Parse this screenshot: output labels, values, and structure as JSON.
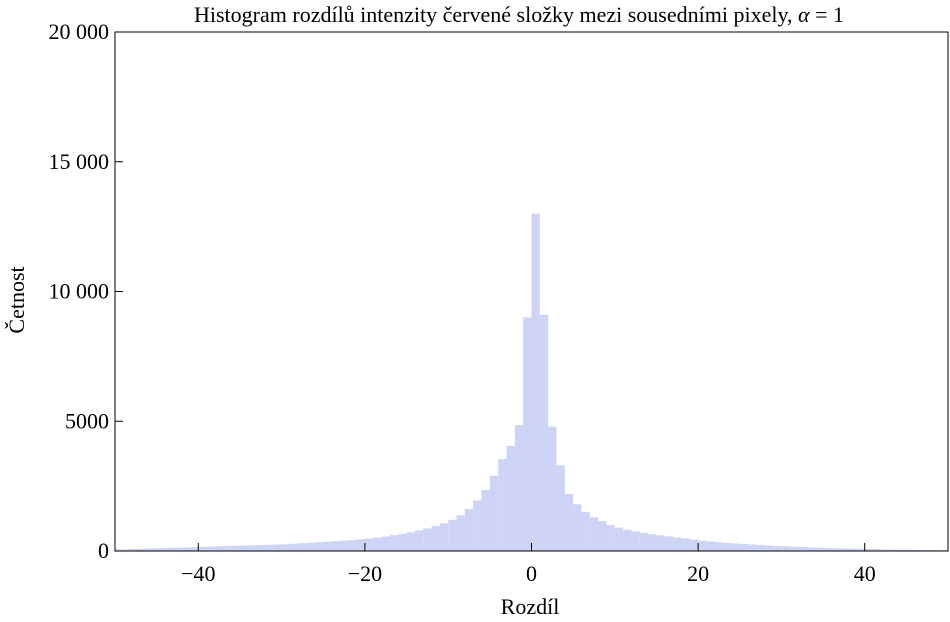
{
  "chart_data": {
    "type": "bar",
    "title_prefix": "Histogram rozdílů intenzity červené složky mezi sousedními pixely, ",
    "title_symbol": "α",
    "title_suffix": " = 1",
    "xlabel": "Rozdíl",
    "ylabel": "Četnost",
    "xlim": [
      -50,
      50
    ],
    "ylim": [
      0,
      20000
    ],
    "x_ticks": [
      -40,
      -20,
      0,
      20,
      40
    ],
    "x_tick_labels": [
      "−40",
      "−20",
      "0",
      "20",
      "40"
    ],
    "y_ticks": [
      0,
      5000,
      10000,
      15000,
      20000
    ],
    "y_tick_labels": [
      "0",
      "5000",
      "10 000",
      "15 000",
      "20 000"
    ],
    "bar_color": "#cdd4f6",
    "bin_width": 1,
    "bins_start": [
      -50,
      -49,
      -48,
      -47,
      -46,
      -45,
      -44,
      -43,
      -42,
      -41,
      -40,
      -39,
      -38,
      -37,
      -36,
      -35,
      -34,
      -33,
      -32,
      -31,
      -30,
      -29,
      -28,
      -27,
      -26,
      -25,
      -24,
      -23,
      -22,
      -21,
      -20,
      -19,
      -18,
      -17,
      -16,
      -15,
      -14,
      -13,
      -12,
      -11,
      -10,
      -9,
      -8,
      -7,
      -6,
      -5,
      -4,
      -3,
      -2,
      -1,
      0,
      1,
      2,
      3,
      4,
      5,
      6,
      7,
      8,
      9,
      10,
      11,
      12,
      13,
      14,
      15,
      16,
      17,
      18,
      19,
      20,
      21,
      22,
      23,
      24,
      25,
      26,
      27,
      28,
      29,
      30,
      31,
      32,
      33,
      34,
      35,
      36,
      37,
      38,
      39,
      40,
      41,
      42,
      43,
      44,
      45,
      46,
      47,
      48,
      49
    ],
    "values": [
      60,
      70,
      80,
      90,
      100,
      110,
      120,
      130,
      140,
      150,
      160,
      170,
      180,
      190,
      200,
      210,
      220,
      230,
      240,
      250,
      260,
      280,
      300,
      320,
      340,
      360,
      380,
      400,
      420,
      450,
      480,
      520,
      560,
      610,
      660,
      720,
      790,
      870,
      960,
      1070,
      1200,
      1380,
      1620,
      1950,
      2350,
      2900,
      3550,
      4050,
      4850,
      9000,
      13000,
      9100,
      4800,
      3300,
      2200,
      1800,
      1500,
      1300,
      1150,
      1000,
      900,
      820,
      760,
      700,
      650,
      600,
      560,
      520,
      480,
      440,
      400,
      370,
      340,
      310,
      290,
      270,
      250,
      230,
      210,
      195,
      180,
      165,
      150,
      140,
      130,
      120,
      110,
      100,
      92,
      85,
      78,
      72,
      66,
      60,
      55,
      50,
      45,
      40,
      35,
      30
    ]
  }
}
